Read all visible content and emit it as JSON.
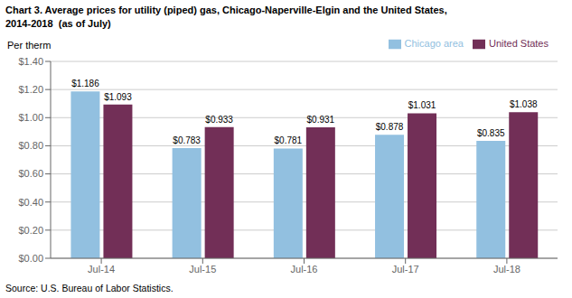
{
  "chart_data": {
    "type": "bar",
    "title": "Chart 3. Average prices for utility (piped) gas, Chicago-Naperville-Elgin and the United States,\n2014-2018  (as of July)",
    "ylabel": "Per therm",
    "source": "Source: U.S. Bureau of Labor Statistics.",
    "categories": [
      "Jul-14",
      "Jul-15",
      "Jul-16",
      "Jul-17",
      "Jul-18"
    ],
    "series": [
      {
        "name": "Chicago area",
        "color": "#92C0E0",
        "values": [
          1.186,
          0.783,
          0.781,
          0.878,
          0.835
        ],
        "value_labels": [
          "$1.186",
          "$0.783",
          "$0.781",
          "$0.878",
          "$0.835"
        ]
      },
      {
        "name": "United States",
        "color": "#722F57",
        "values": [
          1.093,
          0.933,
          0.931,
          1.031,
          1.038
        ],
        "value_labels": [
          "$1.093",
          "$0.933",
          "$0.931",
          "$1.031",
          "$1.038"
        ]
      }
    ],
    "ylim": [
      0,
      1.4
    ],
    "yticks": [
      {
        "value": 0,
        "label": "$0.00"
      },
      {
        "value": 0.2,
        "label": "$0.20"
      },
      {
        "value": 0.4,
        "label": "$0.40"
      },
      {
        "value": 0.6,
        "label": "$0.60"
      },
      {
        "value": 0.8,
        "label": "$0.80"
      },
      {
        "value": 1.0,
        "label": "$1.00"
      },
      {
        "value": 1.2,
        "label": "$1.20"
      },
      {
        "value": 1.4,
        "label": "$1.40"
      }
    ],
    "grid": true,
    "legend": "upper right",
    "data_labels": true
  }
}
